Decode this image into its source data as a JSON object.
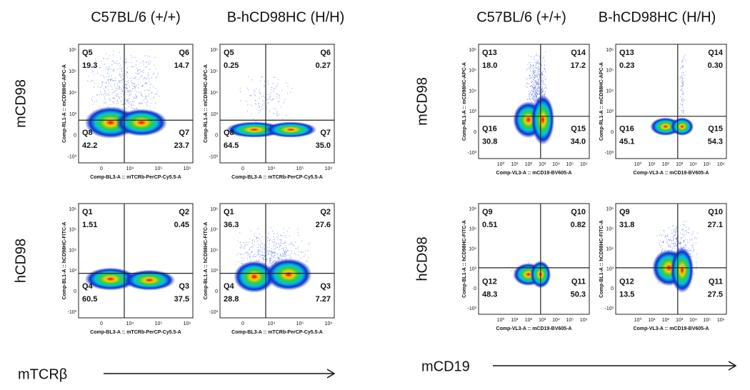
{
  "groups": [
    {
      "columns": [
        "C57BL/6 (+/+)",
        "B-hCD98HC (H/H)"
      ],
      "rows": [
        "mCD98",
        "hCD98"
      ],
      "x_marker": "mTCRβ",
      "x_ticks": [
        "0",
        "10⁴",
        "10⁵",
        "10⁶"
      ],
      "y_ticks": [
        "10⁶",
        "10⁵",
        "10⁴",
        "10³",
        "0",
        "-10³"
      ],
      "panels": [
        {
          "y_axis": "Comp-RL1-A :: mCD98HC-APC-A",
          "x_axis": "Comp-BL3-A :: mTCRb-PerCP-Cy5.5-A",
          "quadrants": [
            {
              "name": "Q5",
              "value": "19.3"
            },
            {
              "name": "Q6",
              "value": "14.7"
            },
            {
              "name": "Q8",
              "value": "42.2"
            },
            {
              "name": "Q7",
              "value": "23.7"
            }
          ]
        },
        {
          "y_axis": "Comp-RL1-A :: mCD98HC-APC-A",
          "x_axis": "Comp-BL3-A :: mTCRb-PerCP-Cy5.5-A",
          "quadrants": [
            {
              "name": "Q5",
              "value": "0.25"
            },
            {
              "name": "Q6",
              "value": "0.27"
            },
            {
              "name": "Q8",
              "value": "64.5"
            },
            {
              "name": "Q7",
              "value": "35.0"
            }
          ]
        },
        {
          "y_axis": "Comp-BL1-A :: hCD98HC-FITC-A",
          "x_axis": "Comp-BL3-A :: mTCRb-PerCP-Cy5.5-A",
          "quadrants": [
            {
              "name": "Q1",
              "value": "1.51"
            },
            {
              "name": "Q2",
              "value": "0.45"
            },
            {
              "name": "Q4",
              "value": "60.5"
            },
            {
              "name": "Q3",
              "value": "37.5"
            }
          ]
        },
        {
          "y_axis": "Comp-BL1-A :: hCD98HC-FITC-A",
          "x_axis": "Comp-BL3-A :: mTCRb-PerCP-Cy5.5-A",
          "quadrants": [
            {
              "name": "Q1",
              "value": "36.3"
            },
            {
              "name": "Q2",
              "value": "27.6"
            },
            {
              "name": "Q4",
              "value": "28.8"
            },
            {
              "name": "Q3",
              "value": "7.27"
            }
          ]
        }
      ]
    },
    {
      "columns": [
        "C57BL/6 (+/+)",
        "B-hCD98HC (H/H)"
      ],
      "rows": [
        "mCD98",
        "hCD98"
      ],
      "x_marker": "mCD19",
      "x_ticks": [
        "10⁰",
        "10¹",
        "10²",
        "10³",
        "10⁴",
        "10⁵",
        "10⁶"
      ],
      "y_ticks": [
        "10⁶",
        "10⁵",
        "10⁴",
        "10³",
        "0",
        "-10³"
      ],
      "panels": [
        {
          "y_axis": "Comp-RL1-A :: mCD98HC-APC-A",
          "x_axis": "Comp-VL3-A :: mCD19-BV605-A",
          "quadrants": [
            {
              "name": "Q13",
              "value": "18.0"
            },
            {
              "name": "Q14",
              "value": "17.2"
            },
            {
              "name": "Q16",
              "value": "30.8"
            },
            {
              "name": "Q15",
              "value": "34.0"
            }
          ]
        },
        {
          "y_axis": "Comp-RL1-A :: mCD98HC-APC-A",
          "x_axis": "Comp-VL3-A :: mCD19-BV605-A",
          "quadrants": [
            {
              "name": "Q13",
              "value": "0.23"
            },
            {
              "name": "Q14",
              "value": "0.30"
            },
            {
              "name": "Q16",
              "value": "45.1"
            },
            {
              "name": "Q15",
              "value": "54.3"
            }
          ]
        },
        {
          "y_axis": "Comp-BL1-A :: hCD98HC-FITC-A",
          "x_axis": "Comp-VL3-A :: mCD19-BV605-A",
          "quadrants": [
            {
              "name": "Q9",
              "value": "0.51"
            },
            {
              "name": "Q10",
              "value": "0.82"
            },
            {
              "name": "Q12",
              "value": "48.3"
            },
            {
              "name": "Q11",
              "value": "50.3"
            }
          ]
        },
        {
          "y_axis": "Comp-BL1-A :: hCD98HC-FITC-A",
          "x_axis": "Comp-VL3-A :: mCD19-BV605-A",
          "quadrants": [
            {
              "name": "Q9",
              "value": "31.8"
            },
            {
              "name": "Q10",
              "value": "27.1"
            },
            {
              "name": "Q12",
              "value": "13.5"
            },
            {
              "name": "Q11",
              "value": "27.5"
            }
          ]
        }
      ]
    }
  ]
}
